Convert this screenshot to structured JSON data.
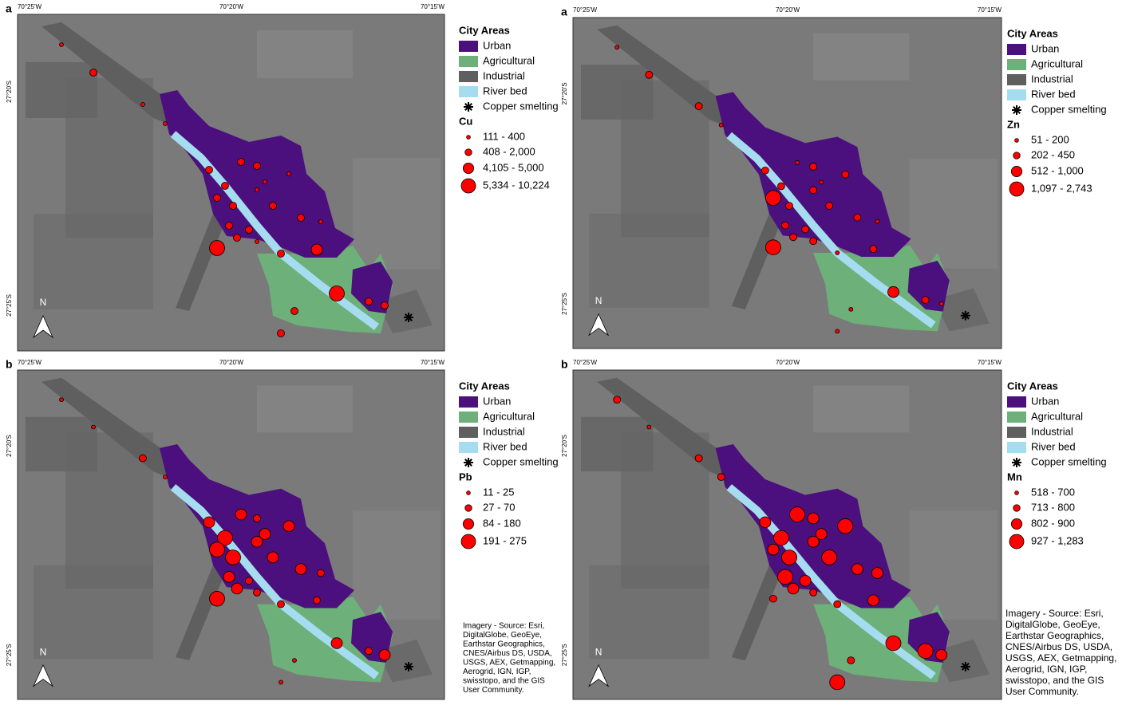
{
  "panels": [
    {
      "label": "a",
      "lon_labels": [
        "70°25'W",
        "70°20'W",
        "70°15'W"
      ],
      "lat_labels": [
        "27°20'S",
        "27°25'S"
      ],
      "north": "N",
      "legend": {
        "title": "City Areas",
        "areas": [
          "Urban",
          "Agricultural",
          "Industrial",
          "River bed",
          "Copper smelting"
        ],
        "element": "Cu",
        "classes": [
          "111 - 400",
          "408 - 2,000",
          "4,105 - 5,000",
          "5,334 - 10,224"
        ]
      }
    },
    {
      "label": "a",
      "lon_labels": [
        "70°25'W",
        "70°20'W",
        "70°15'W"
      ],
      "lat_labels": [
        "27°20'S",
        "27°25'S"
      ],
      "north": "N",
      "legend": {
        "title": "City Areas",
        "areas": [
          "Urban",
          "Agricultural",
          "Industrial",
          "River bed",
          "Copper smelting"
        ],
        "element": "Zn",
        "classes": [
          "51 - 200",
          "202 - 450",
          "512 - 1,000",
          "1,097 - 2,743"
        ]
      }
    },
    {
      "label": "b",
      "lon_labels": [
        "70°25'W",
        "70°20'W",
        "70°15'W"
      ],
      "lat_labels": [
        "27°20'S",
        "27°25'S"
      ],
      "north": "N",
      "legend": {
        "title": "City Areas",
        "areas": [
          "Urban",
          "Agricultural",
          "Industrial",
          "River bed",
          "Copper smelting"
        ],
        "element": "Pb",
        "classes": [
          "11 - 25",
          "27 - 70",
          "84 - 180",
          "191 - 275"
        ]
      },
      "credit_lines": [
        "Imagery - Source: Esri,",
        "DigitalGlobe, GeoEye,",
        "Earthstar Geographics,",
        "CNES/Airbus DS, USDA,",
        "USGS, AEX, Getmapping,",
        "Aerogrid, IGN, IGP,",
        "swisstopo, and the GIS",
        "User Community."
      ]
    },
    {
      "label": "b",
      "lon_labels": [
        "70°25'W",
        "70°20'W",
        "70°15'W"
      ],
      "lat_labels": [
        "27°20'S",
        "27°25'S"
      ],
      "north": "N",
      "legend": {
        "title": "City Areas",
        "areas": [
          "Urban",
          "Agricultural",
          "Industrial",
          "River bed",
          "Copper smelting"
        ],
        "element": "Mn",
        "classes": [
          "518 - 700",
          "713 - 800",
          "802 - 900",
          "927 - 1,283"
        ]
      },
      "credit_lines": [
        "Imagery - Source: Esri,",
        "DigitalGlobe, GeoEye,",
        "Earthstar Geographics,",
        "CNES/Airbus DS, USDA,",
        "USGS, AEX, Getmapping,",
        "Aerogrid, IGN, IGP,",
        "swisstopo, and the GIS",
        "User Community."
      ]
    }
  ]
}
